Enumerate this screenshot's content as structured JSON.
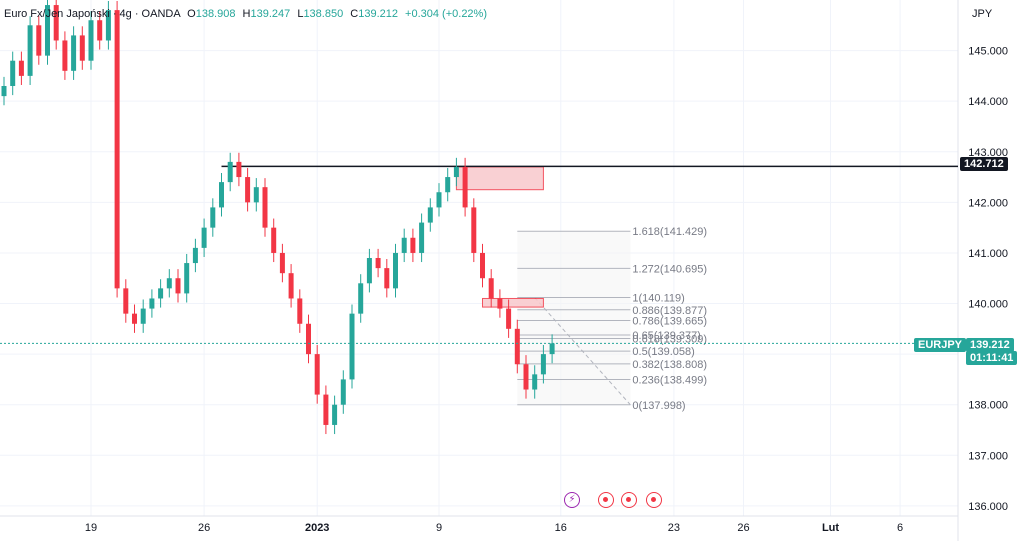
{
  "legend": {
    "symbol": "Euro Fx/Jen Japoński · 4g · OANDA",
    "open_label": "O",
    "open": "138.908",
    "high_label": "H",
    "high": "139.247",
    "low_label": "L",
    "low": "138.850",
    "close_label": "C",
    "close": "139.212",
    "change": "+0.304 (+0.22%)"
  },
  "axis": {
    "currency": "JPY"
  },
  "price_tag": {
    "symbol": "EURJPY",
    "price": "139.212",
    "countdown": "01:11:41",
    "color": "#26a69a"
  },
  "resistance_tag": {
    "price": "142.712",
    "color": "#131722"
  },
  "colors": {
    "up": "#26a69a",
    "down": "#f23645",
    "zone_fill": "#f9c8cc",
    "zone_border": "#f23645"
  },
  "events": {
    "flash_icon": "lightning-icon",
    "dot_icon": "economic-event-icon",
    "flash_glyph": "⚡"
  },
  "chart_data": {
    "type": "candlestick",
    "ylim": [
      135.8,
      146.0
    ],
    "yticks": [
      136.0,
      137.0,
      138.0,
      139.0,
      140.0,
      141.0,
      142.0,
      143.0,
      144.0,
      145.0
    ],
    "xticks": [
      {
        "label": "19",
        "index": 10
      },
      {
        "label": "26",
        "index": 23
      },
      {
        "label": "2023",
        "index": 36
      },
      {
        "label": "9",
        "index": 50
      },
      {
        "label": "16",
        "index": 64
      },
      {
        "label": "23",
        "index": 77
      },
      {
        "label": "26",
        "index": 85
      },
      {
        "label": "Lut",
        "index": 95
      },
      {
        "label": "6",
        "index": 103
      }
    ],
    "closes": [
      144.3,
      144.8,
      144.5,
      145.5,
      144.9,
      145.9,
      145.2,
      144.6,
      145.3,
      144.8,
      145.6,
      145.2,
      145.8,
      140.3,
      139.8,
      139.6,
      139.9,
      140.1,
      140.3,
      140.5,
      140.2,
      140.8,
      141.1,
      141.5,
      141.9,
      142.4,
      142.8,
      142.5,
      142.0,
      142.3,
      141.5,
      141.0,
      140.6,
      140.1,
      139.6,
      139.0,
      138.2,
      137.6,
      138.0,
      138.5,
      139.8,
      140.4,
      140.9,
      140.7,
      140.3,
      141.0,
      141.3,
      141.0,
      141.6,
      141.9,
      142.2,
      142.5,
      142.7,
      141.9,
      141.0,
      140.5,
      140.1,
      139.9,
      139.5,
      138.8,
      138.3,
      138.6,
      139.0,
      139.212
    ],
    "fibonacci": {
      "levels": [
        {
          "label": "0(137.998)",
          "price": 137.998
        },
        {
          "label": "0.236(138.499)",
          "price": 138.499
        },
        {
          "label": "0.382(138.808)",
          "price": 138.808
        },
        {
          "label": "0.5(139.058)",
          "price": 139.058
        },
        {
          "label": "0.618(139.309)",
          "price": 139.309
        },
        {
          "label": "0.65(139.377)",
          "price": 139.377
        },
        {
          "label": "0.786(139.665)",
          "price": 139.665
        },
        {
          "label": "0.886(139.877)",
          "price": 139.877
        },
        {
          "label": "1(140.119)",
          "price": 140.119
        },
        {
          "label": "1.272(140.695)",
          "price": 140.695
        },
        {
          "label": "1.618(141.429)",
          "price": 141.429
        }
      ]
    },
    "resistance": 142.712,
    "zones": [
      {
        "top": 142.7,
        "bottom": 142.25,
        "from_index": 52,
        "to_index": 62
      },
      {
        "top": 140.1,
        "bottom": 139.93,
        "from_index": 55,
        "to_index": 62
      }
    ]
  }
}
